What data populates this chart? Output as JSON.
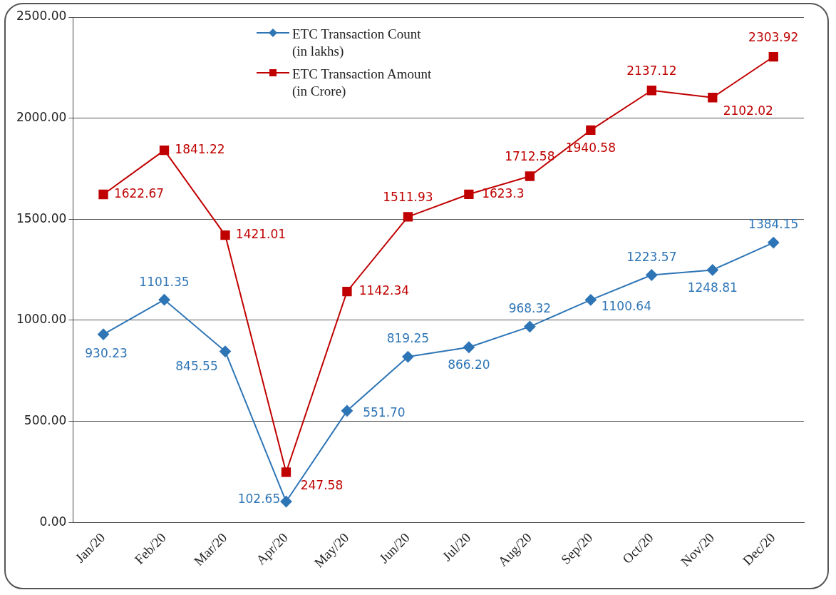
{
  "chart_data": {
    "type": "line",
    "categories": [
      "Jan/20",
      "Feb/20",
      "Mar/20",
      "Apr/20",
      "May/20",
      "Jun/20",
      "Jul/20",
      "Aug/20",
      "Sep/20",
      "Oct/20",
      "Nov/20",
      "Dec/20"
    ],
    "series": [
      {
        "name": "ETC Transaction Count\n(in lakhs)",
        "color": "#2e75b6",
        "marker": "diamond",
        "values": [
          930.23,
          1101.35,
          845.55,
          102.65,
          551.7,
          819.25,
          866.2,
          968.32,
          1100.64,
          1223.57,
          1248.81,
          1384.15
        ],
        "value_labels": [
          "930.23",
          "1101.35",
          "845.55",
          "102.65",
          "551.70",
          "819.25",
          "866.20",
          "968.32",
          "1100.64",
          "1223.57",
          "1248.81",
          "1384.15"
        ]
      },
      {
        "name": "ETC Transaction Amount\n(in Crore)",
        "color": "#c00000",
        "marker": "square",
        "values": [
          1622.67,
          1841.22,
          1421.01,
          247.58,
          1142.34,
          1511.93,
          1623.3,
          1712.58,
          1940.58,
          2137.12,
          2102.02,
          2303.92
        ],
        "value_labels": [
          "1622.67",
          "1841.22",
          "1421.01",
          "247.58",
          "1142.34",
          "1511.93",
          "1623.3",
          "1712.58",
          "1940.58",
          "2137.12",
          "2102.02",
          "2303.92"
        ]
      }
    ],
    "ylim": [
      0,
      2500
    ],
    "yticks": [
      {
        "value": 0,
        "label": "0.00"
      },
      {
        "value": 500,
        "label": "500.00"
      },
      {
        "value": 1000,
        "label": "1000.00"
      },
      {
        "value": 1500,
        "label": "1500.00"
      },
      {
        "value": 2000,
        "label": "2000.00"
      },
      {
        "value": 2500,
        "label": "2500.00"
      }
    ],
    "grid": "y",
    "legend": "top",
    "line_style": "solid"
  }
}
